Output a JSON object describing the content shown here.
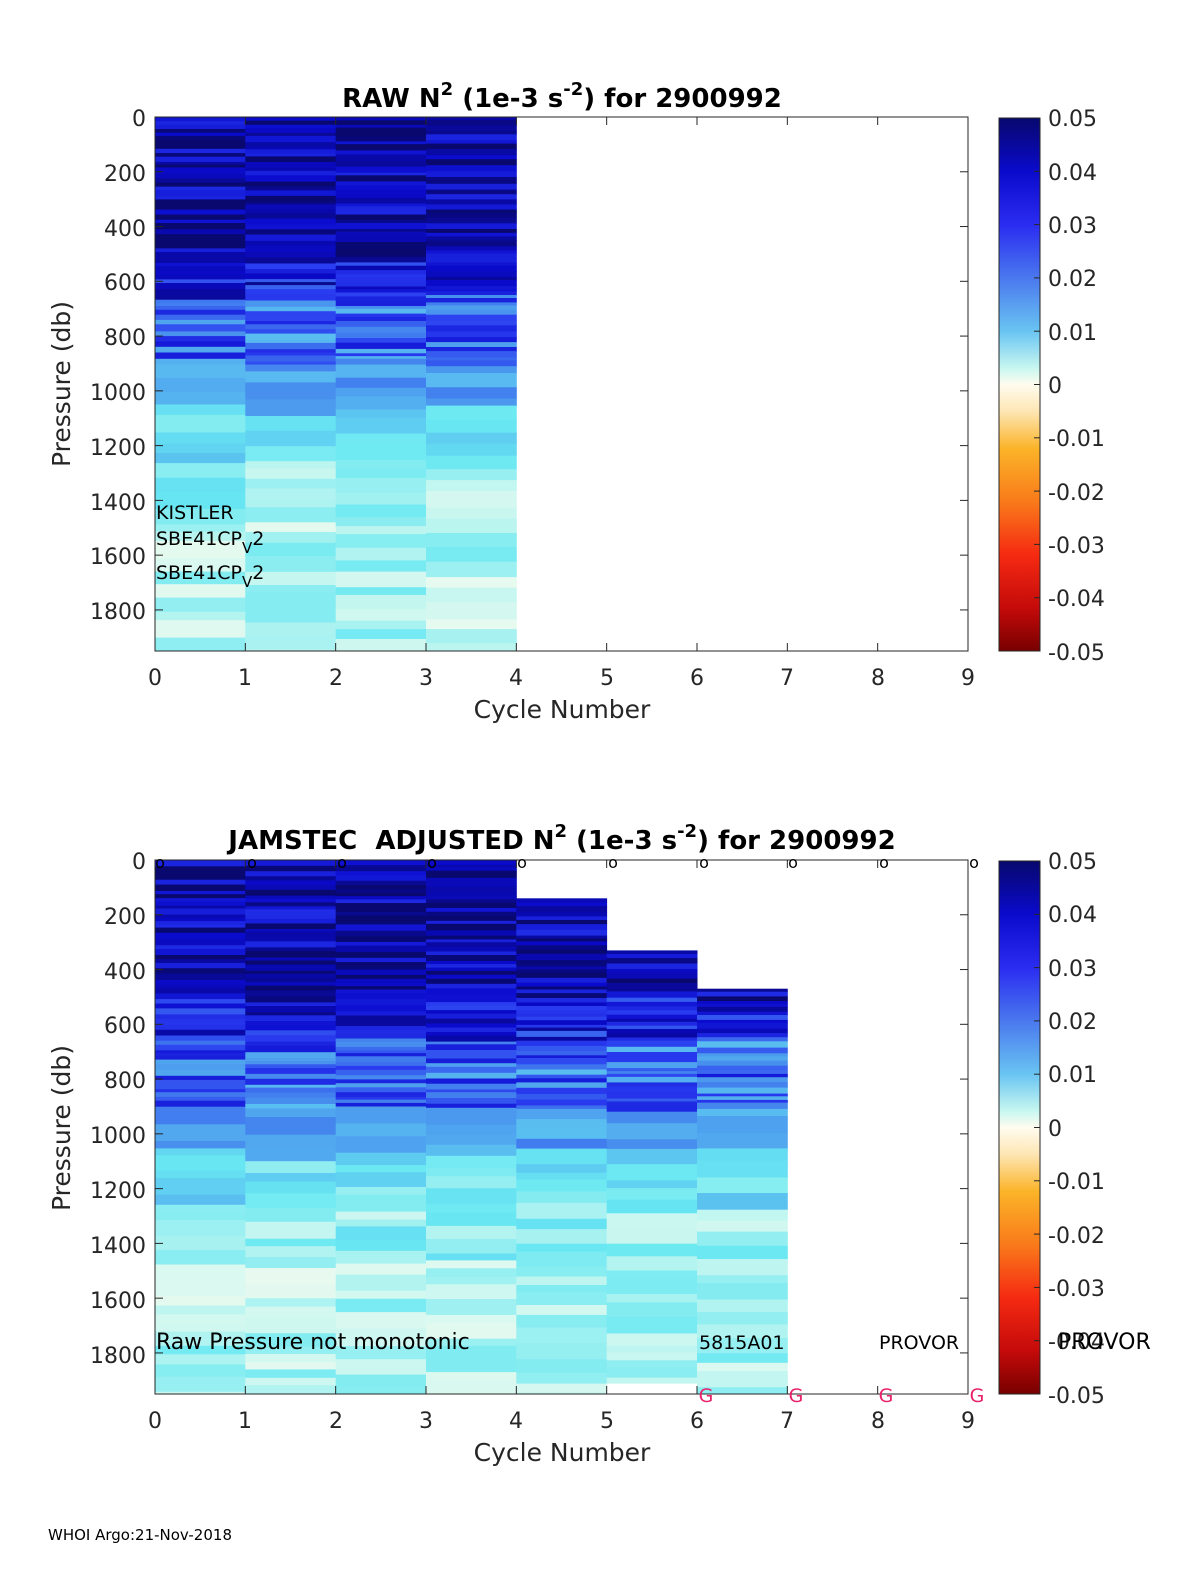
{
  "footer": "WHOI Argo:21-Nov-2018",
  "colorbar": {
    "ticks": [
      "0.05",
      "0.04",
      "0.03",
      "0.02",
      "0.01",
      "0",
      "-0.01",
      "-0.02",
      "-0.03",
      "-0.04",
      "-0.05"
    ],
    "range": [
      -0.05,
      0.05
    ]
  },
  "chart_data": [
    {
      "type": "heatmap",
      "title_main": "RAW N",
      "title_sup1": "2",
      "title_mid": " (1e-3 s",
      "title_sup2": "-2",
      "title_end": ") for 2900992",
      "xlabel": "Cycle Number",
      "ylabel": "Pressure (db)",
      "xlim": [
        0,
        9
      ],
      "ylim": [
        1950,
        0
      ],
      "xticks": [
        "0",
        "1",
        "2",
        "3",
        "4",
        "5",
        "6",
        "7",
        "8",
        "9"
      ],
      "yticks": [
        "0",
        "200",
        "400",
        "600",
        "800",
        "1000",
        "1200",
        "1400",
        "1600",
        "1800"
      ],
      "columns": [
        {
          "cycle": 0,
          "max_pressure": 1950
        },
        {
          "cycle": 1,
          "max_pressure": 1950
        },
        {
          "cycle": 2,
          "max_pressure": 1950
        },
        {
          "cycle": 3,
          "max_pressure": 1950
        }
      ],
      "annotations": [
        "KISTLER",
        "SBE41CP",
        "V",
        "2",
        "SBE41CP",
        "V",
        "2"
      ],
      "top_markers": [],
      "bottom_markers": []
    },
    {
      "type": "heatmap",
      "title_main": "JAMSTEC  ADJUSTED N",
      "title_sup1": "2",
      "title_mid": " (1e-3 s",
      "title_sup2": "-2",
      "title_end": ") for 2900992",
      "xlabel": "Cycle Number",
      "ylabel": "Pressure (db)",
      "xlim": [
        0,
        9
      ],
      "ylim": [
        1950,
        0
      ],
      "xticks": [
        "0",
        "1",
        "2",
        "3",
        "4",
        "5",
        "6",
        "7",
        "8",
        "9"
      ],
      "yticks": [
        "0",
        "200",
        "400",
        "600",
        "800",
        "1000",
        "1200",
        "1400",
        "1600",
        "1800"
      ],
      "columns": [
        {
          "cycle": 0,
          "min_pressure": 0,
          "max_pressure": 1950
        },
        {
          "cycle": 1,
          "min_pressure": 0,
          "max_pressure": 1950
        },
        {
          "cycle": 2,
          "min_pressure": 0,
          "max_pressure": 1950
        },
        {
          "cycle": 3,
          "min_pressure": 0,
          "max_pressure": 1950
        },
        {
          "cycle": 4,
          "min_pressure": 140,
          "max_pressure": 1950
        },
        {
          "cycle": 5,
          "min_pressure": 330,
          "max_pressure": 1910
        },
        {
          "cycle": 6,
          "min_pressure": 470,
          "max_pressure": 1950
        }
      ],
      "annotations": [
        "Raw Pressure not monotonic",
        "5815A01",
        "PROVOR",
        "PROVOR"
      ],
      "top_markers": [
        "o",
        "o",
        "o",
        "o",
        "o",
        "o",
        "o",
        "o",
        "o",
        "o"
      ],
      "bottom_markers": [
        "G",
        "G",
        "G",
        "G"
      ]
    }
  ]
}
